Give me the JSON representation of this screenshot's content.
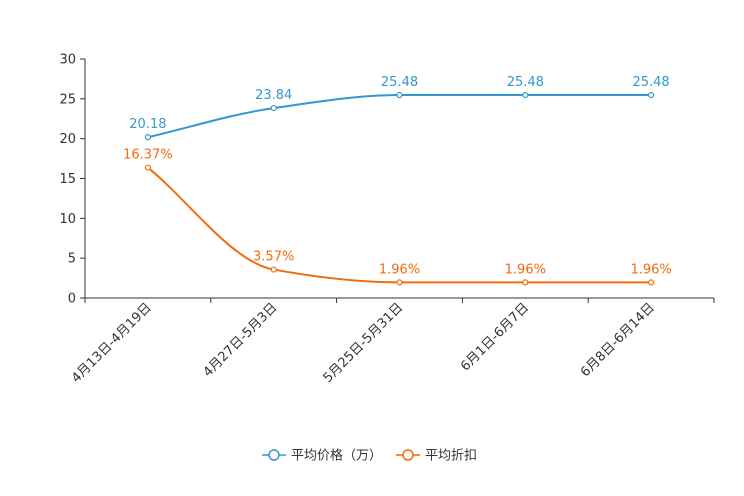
{
  "chart_data": {
    "type": "line",
    "title": "",
    "xlabel": "",
    "ylabel": "",
    "categories": [
      "4月13日-4月19日",
      "4月27日-5月3日",
      "5月25日-5月31日",
      "6月1日-6月7日",
      "6月8日-6月14日"
    ],
    "ylim": [
      0,
      30
    ],
    "yticks": [
      0,
      5,
      10,
      15,
      20,
      25,
      30
    ],
    "legend_position": "bottom",
    "series": [
      {
        "name": "平均价格（万）",
        "color": "#3399cc",
        "values": [
          20.18,
          23.84,
          25.48,
          25.48,
          25.48
        ],
        "labels": [
          "20.18",
          "23.84",
          "25.48",
          "25.48",
          "25.48"
        ]
      },
      {
        "name": "平均折扣",
        "color": "#f26b0f",
        "values": [
          16.37,
          3.57,
          1.96,
          1.96,
          1.96
        ],
        "labels": [
          "16.37%",
          "3.57%",
          "1.96%",
          "1.96%",
          "1.96%"
        ]
      }
    ]
  }
}
